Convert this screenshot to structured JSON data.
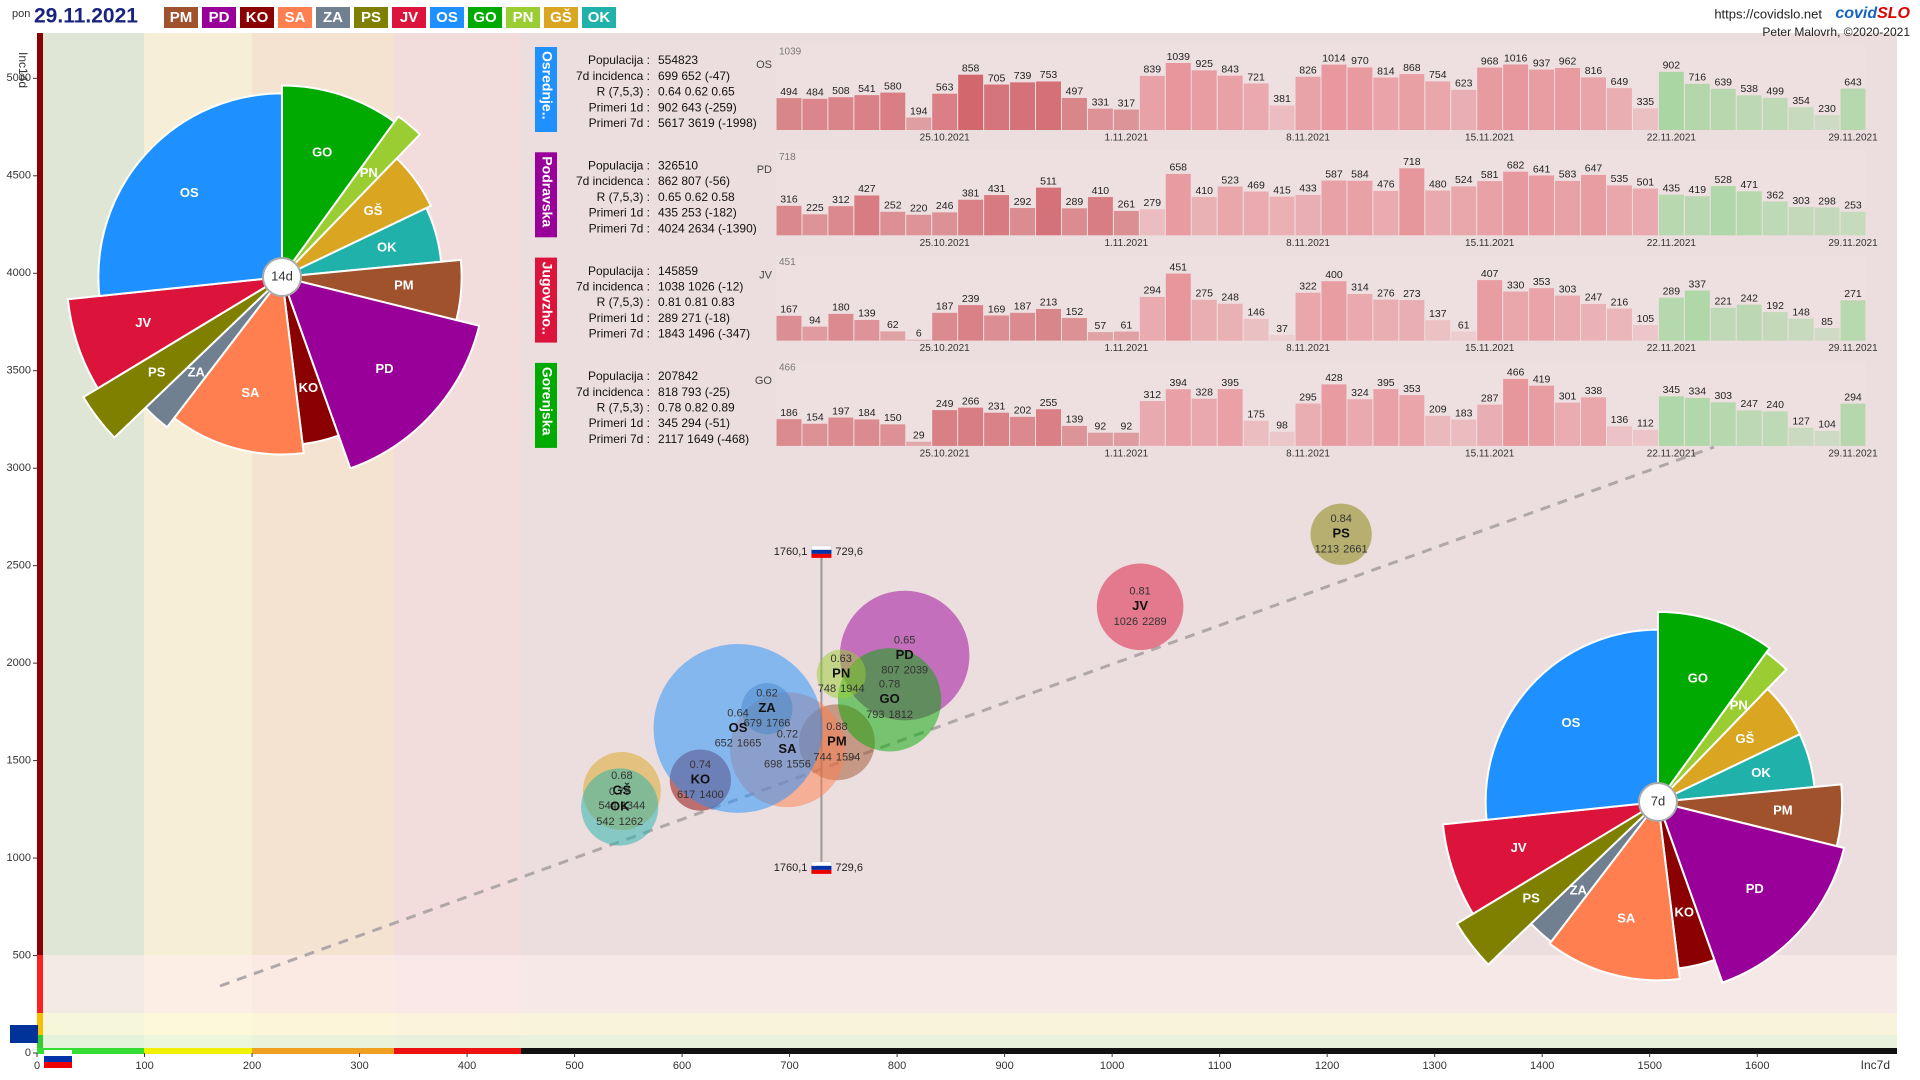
{
  "header": {
    "day": "pon",
    "date": "29.11.2021",
    "url": "https://covidslo.net",
    "brand_a": "covid",
    "brand_b": "SLO",
    "author": "Peter Malovrh, ©2020-2021"
  },
  "chart_data": [
    {
      "type": "bubble",
      "x_label": "Inc7d",
      "y_label": "Inc14d",
      "xlim": [
        0,
        1730
      ],
      "ylim": [
        0,
        5230
      ],
      "xticks": [
        0,
        100,
        200,
        300,
        400,
        500,
        600,
        700,
        800,
        900,
        1000,
        1100,
        1200,
        1300,
        1400,
        1500,
        1600
      ],
      "yticks": [
        0,
        500,
        1000,
        1500,
        2000,
        2500,
        3000,
        3500,
        4000,
        4500,
        5000
      ],
      "reference": {
        "x": {
          "value": 729.6,
          "label": "729,6"
        },
        "y": {
          "value": 1760.1,
          "label": "1760,1"
        }
      },
      "series": [
        {
          "name": "PM",
          "color": "#a0522d",
          "x": 744,
          "y": 1594,
          "size": 112000,
          "r": 0.88
        },
        {
          "name": "PD",
          "color": "#990099",
          "x": 807,
          "y": 2039,
          "size": 326510,
          "r": 0.65
        },
        {
          "name": "KO",
          "color": "#8b0000",
          "x": 617,
          "y": 1400,
          "size": 73000,
          "r": 0.74
        },
        {
          "name": "SA",
          "color": "#ff7f50",
          "x": 698,
          "y": 1556,
          "size": 257000,
          "r": 0.72
        },
        {
          "name": "ZA",
          "color": "#708090",
          "x": 679,
          "y": 1766,
          "size": 51000,
          "r": 0.62
        },
        {
          "name": "PS",
          "color": "#808000",
          "x": 1213,
          "y": 2661,
          "size": 73000,
          "r": 0.84
        },
        {
          "name": "JV",
          "color": "#dc143c",
          "x": 1026,
          "y": 2289,
          "size": 145859,
          "r": 0.81
        },
        {
          "name": "OS",
          "color": "#1e90ff",
          "x": 652,
          "y": 1665,
          "size": 554823,
          "r": 0.64
        },
        {
          "name": "GO",
          "color": "#00aa00",
          "x": 793,
          "y": 1812,
          "size": 207842,
          "r": 0.78
        },
        {
          "name": "PN",
          "color": "#9acd32",
          "x": 748,
          "y": 1944,
          "size": 47000,
          "r": 0.63
        },
        {
          "name": "GŠ",
          "color": "#daa520",
          "x": 544,
          "y": 1344,
          "size": 118000,
          "r": 0.68
        },
        {
          "name": "OK",
          "color": "#20b2aa",
          "x": 542,
          "y": 1262,
          "size": 116000,
          "r": 0.79
        }
      ]
    },
    {
      "type": "pie",
      "center_label": "14d",
      "categories": [
        "GO",
        "PN",
        "GŠ",
        "OK",
        "PM",
        "PD",
        "KO",
        "SA",
        "ZA",
        "PS",
        "JV",
        "OS"
      ],
      "colors": [
        "#00aa00",
        "#9acd32",
        "#daa520",
        "#20b2aa",
        "#a0522d",
        "#990099",
        "#8b0000",
        "#ff7f50",
        "#708090",
        "#808000",
        "#dc143c",
        "#1e90ff"
      ],
      "values": [
        1812,
        1944,
        1344,
        1262,
        1594,
        2039,
        1400,
        1556,
        1766,
        2661,
        2289,
        1665
      ],
      "weights": [
        207842,
        47000,
        118000,
        116000,
        112000,
        326510,
        73000,
        257000,
        51000,
        73000,
        145859,
        554823
      ]
    },
    {
      "type": "pie",
      "center_label": "7d",
      "categories": [
        "GO",
        "PN",
        "GŠ",
        "OK",
        "PM",
        "PD",
        "KO",
        "SA",
        "ZA",
        "PS",
        "JV",
        "OS"
      ],
      "colors": [
        "#00aa00",
        "#9acd32",
        "#daa520",
        "#20b2aa",
        "#a0522d",
        "#990099",
        "#8b0000",
        "#ff7f50",
        "#708090",
        "#808000",
        "#dc143c",
        "#1e90ff"
      ],
      "values": [
        793,
        748,
        544,
        542,
        744,
        807,
        617,
        698,
        679,
        1213,
        1026,
        652
      ],
      "weights": [
        207842,
        47000,
        118000,
        116000,
        112000,
        326510,
        73000,
        257000,
        51000,
        73000,
        145859,
        554823
      ]
    },
    {
      "type": "bar",
      "title": "Osrednje..",
      "code": "OS",
      "color": "#1e90ff",
      "ylim": [
        0,
        1039
      ],
      "info": [
        {
          "label": "Populacija :",
          "value": "554823"
        },
        {
          "label": "7d incidenca :",
          "value": "699 652 (-47)"
        },
        {
          "label": "R (7,5,3) :",
          "value": "0.64 0.62 0.65"
        },
        {
          "label": "Primeri 1d :",
          "value": "902 643 (-259)"
        },
        {
          "label": "Primeri 7d :",
          "value": "5617 3619 (-1998)"
        }
      ],
      "categories": [
        null,
        null,
        null,
        null,
        null,
        null,
        "25.10.2021",
        null,
        null,
        null,
        null,
        null,
        null,
        "1.11.2021",
        null,
        null,
        null,
        null,
        null,
        null,
        "8.11.2021",
        null,
        null,
        null,
        null,
        null,
        null,
        "15.11.2021",
        null,
        null,
        null,
        null,
        null,
        null,
        "22.11.2021",
        null,
        null,
        null,
        null,
        null,
        null,
        "29.11.2021"
      ],
      "values": [
        494,
        484,
        508,
        541,
        580,
        194,
        563,
        858,
        705,
        739,
        753,
        497,
        331,
        317,
        839,
        1039,
        925,
        843,
        721,
        381,
        826,
        1014,
        970,
        814,
        868,
        754,
        623,
        968,
        1016,
        937,
        962,
        816,
        649,
        335,
        902,
        716,
        639,
        538,
        499,
        354,
        230,
        643
      ]
    },
    {
      "type": "bar",
      "title": "Podravska",
      "code": "PD",
      "color": "#990099",
      "ylim": [
        0,
        718
      ],
      "info": [
        {
          "label": "Populacija :",
          "value": "326510"
        },
        {
          "label": "7d incidenca :",
          "value": "862 807 (-56)"
        },
        {
          "label": "R (7,5,3) :",
          "value": "0.65 0.62 0.58"
        },
        {
          "label": "Primeri 1d :",
          "value": "435 253 (-182)"
        },
        {
          "label": "Primeri 7d :",
          "value": "4024 2634 (-1390)"
        }
      ],
      "categories": [
        null,
        null,
        null,
        null,
        null,
        null,
        "25.10.2021",
        null,
        null,
        null,
        null,
        null,
        null,
        "1.11.2021",
        null,
        null,
        null,
        null,
        null,
        null,
        "8.11.2021",
        null,
        null,
        null,
        null,
        null,
        null,
        "15.11.2021",
        null,
        null,
        null,
        null,
        null,
        null,
        "22.11.2021",
        null,
        null,
        null,
        null,
        null,
        null,
        "29.11.2021"
      ],
      "values": [
        316,
        225,
        312,
        427,
        252,
        220,
        246,
        381,
        431,
        292,
        511,
        289,
        410,
        261,
        279,
        658,
        410,
        523,
        469,
        415,
        433,
        587,
        584,
        476,
        718,
        480,
        524,
        581,
        682,
        641,
        583,
        647,
        535,
        501,
        435,
        419,
        528,
        471,
        362,
        303,
        298,
        253
      ]
    },
    {
      "type": "bar",
      "title": "Jugovzho..",
      "code": "JV",
      "color": "#dc143c",
      "ylim": [
        0,
        451
      ],
      "info": [
        {
          "label": "Populacija :",
          "value": "145859"
        },
        {
          "label": "7d incidenca :",
          "value": "1038 1026 (-12)"
        },
        {
          "label": "R (7,5,3) :",
          "value": "0.81 0.81 0.83"
        },
        {
          "label": "Primeri 1d :",
          "value": "289 271 (-18)"
        },
        {
          "label": "Primeri 7d :",
          "value": "1843 1496 (-347)"
        }
      ],
      "categories": [
        null,
        null,
        null,
        null,
        null,
        null,
        "25.10.2021",
        null,
        null,
        null,
        null,
        null,
        null,
        "1.11.2021",
        null,
        null,
        null,
        null,
        null,
        null,
        "8.11.2021",
        null,
        null,
        null,
        null,
        null,
        null,
        "15.11.2021",
        null,
        null,
        null,
        null,
        null,
        null,
        "22.11.2021",
        null,
        null,
        null,
        null,
        null,
        null,
        "29.11.2021"
      ],
      "values": [
        167,
        94,
        180,
        139,
        62,
        6,
        187,
        239,
        169,
        187,
        213,
        152,
        57,
        61,
        294,
        451,
        275,
        248,
        146,
        37,
        322,
        400,
        314,
        276,
        273,
        137,
        61,
        407,
        330,
        353,
        303,
        247,
        216,
        105,
        289,
        337,
        221,
        242,
        192,
        148,
        85,
        271
      ]
    },
    {
      "type": "bar",
      "title": "Gorenjska",
      "code": "GO",
      "color": "#00aa00",
      "ylim": [
        0,
        466
      ],
      "info": [
        {
          "label": "Populacija :",
          "value": "207842"
        },
        {
          "label": "7d incidenca :",
          "value": "818 793 (-25)"
        },
        {
          "label": "R (7,5,3) :",
          "value": "0.78 0.82 0.89"
        },
        {
          "label": "Primeri 1d :",
          "value": "345 294 (-51)"
        },
        {
          "label": "Primeri 7d :",
          "value": "2117 1649 (-468)"
        }
      ],
      "categories": [
        null,
        null,
        null,
        null,
        null,
        null,
        "25.10.2021",
        null,
        null,
        null,
        null,
        null,
        null,
        "1.11.2021",
        null,
        null,
        null,
        null,
        null,
        null,
        "8.11.2021",
        null,
        null,
        null,
        null,
        null,
        null,
        "15.11.2021",
        null,
        null,
        null,
        null,
        null,
        null,
        "22.11.2021",
        null,
        null,
        null,
        null,
        null,
        null,
        "29.11.2021"
      ],
      "values": [
        186,
        154,
        197,
        184,
        150,
        29,
        249,
        266,
        231,
        202,
        255,
        139,
        92,
        92,
        312,
        394,
        328,
        395,
        175,
        98,
        295,
        428,
        324,
        395,
        353,
        209,
        183,
        287,
        466,
        419,
        301,
        338,
        136,
        112,
        345,
        334,
        303,
        247,
        240,
        127,
        104,
        294
      ]
    }
  ]
}
